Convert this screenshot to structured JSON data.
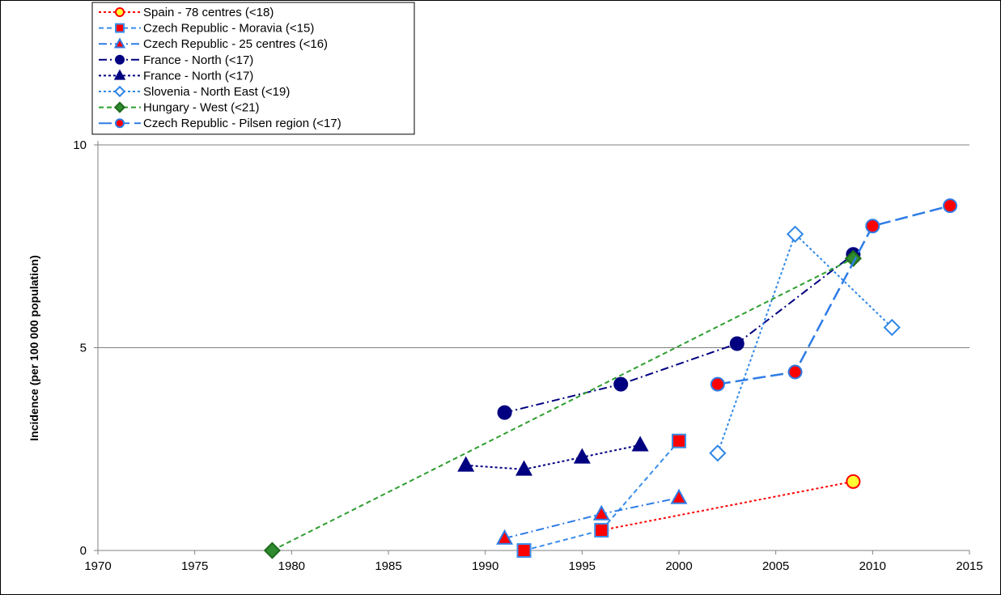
{
  "chart_data": {
    "type": "line",
    "title": "",
    "xlabel": "",
    "ylabel": "Incidence  (per 100 000  population)",
    "xlim": [
      1970,
      2015
    ],
    "ylim": [
      0,
      10
    ],
    "x_ticks": [
      "1970",
      "1975",
      "1980",
      "1985",
      "1990",
      "1995",
      "2000",
      "2005",
      "2010",
      "2015"
    ],
    "y_ticks": [
      "0",
      "5",
      "10"
    ],
    "grid": "horizontal major gridlines at 5 and 10",
    "legend_placement": "top-left",
    "series": [
      {
        "name": "Spain - 78 centres  (<18)",
        "points": [
          [
            1996,
            0.5
          ],
          [
            2009,
            1.7
          ]
        ],
        "line_color": "#ff0000",
        "line_style": "dotted",
        "marker": "circle",
        "marker_fill": "#ffff33",
        "marker_stroke": "#ff0000"
      },
      {
        "name": "Czech Republic - Moravia  (<15)",
        "points": [
          [
            1992,
            0.0
          ],
          [
            1996,
            0.5
          ],
          [
            2000,
            2.7
          ]
        ],
        "line_color": "#3a8eea",
        "line_style": "dashed",
        "marker": "square",
        "marker_fill": "#ff0000",
        "marker_stroke": "#3a8eea"
      },
      {
        "name": "Czech Republic - 25 centres  (<16)",
        "points": [
          [
            1991,
            0.3
          ],
          [
            1996,
            0.9
          ],
          [
            2000,
            1.3
          ]
        ],
        "line_color": "#2e7ce6",
        "line_style": "dash-dot",
        "marker": "triangle",
        "marker_fill": "#ff0000",
        "marker_stroke": "#2e7ce6"
      },
      {
        "name": "France - North  (<17)",
        "points": [
          [
            1991,
            3.4
          ],
          [
            1997,
            4.1
          ],
          [
            2003,
            5.1
          ],
          [
            2009,
            7.3
          ]
        ],
        "line_color": "#000080",
        "line_style": "dash-dot",
        "marker": "circle",
        "marker_fill": "#000080",
        "marker_stroke": "#000080"
      },
      {
        "name": "France - North  (<17)",
        "points": [
          [
            1989,
            2.1
          ],
          [
            1992,
            2.0
          ],
          [
            1995,
            2.3
          ],
          [
            1998,
            2.6
          ]
        ],
        "line_color": "#000080",
        "line_style": "dotted",
        "marker": "triangle",
        "marker_fill": "#000080",
        "marker_stroke": "#000080"
      },
      {
        "name": "Slovenia - North East  (<19)",
        "points": [
          [
            2002,
            2.4
          ],
          [
            2006,
            7.8
          ],
          [
            2011,
            5.5
          ]
        ],
        "line_color": "#2e86e6",
        "line_style": "dotted",
        "marker": "diamond",
        "marker_fill": "#ffffff",
        "marker_stroke": "#2e86e6"
      },
      {
        "name": "Hungary - West  (<21)",
        "points": [
          [
            1979,
            0.0
          ],
          [
            2009,
            7.2
          ]
        ],
        "line_color": "#2e9e2e",
        "line_style": "dashed",
        "marker": "diamond",
        "marker_fill": "#2e8b2e",
        "marker_stroke": "#1f6b1f"
      },
      {
        "name": "Czech Republic - Pilsen region  (<17)",
        "points": [
          [
            2002,
            4.1
          ],
          [
            2006,
            4.4
          ],
          [
            2010,
            8.0
          ],
          [
            2014,
            8.5
          ]
        ],
        "line_color": "#2e7ce6",
        "line_style": "long-dash",
        "marker": "circle",
        "marker_fill": "#ff0000",
        "marker_stroke": "#2e7ce6"
      }
    ]
  }
}
